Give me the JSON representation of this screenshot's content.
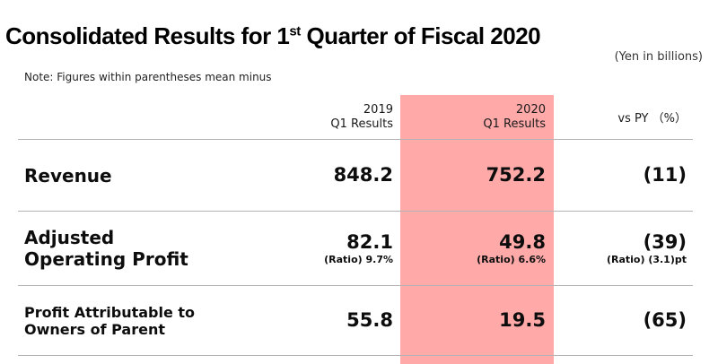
{
  "title": {
    "part1": "Consolidated Results for 1",
    "superscript": "st",
    "part2": " Quarter of Fiscal 2020"
  },
  "unit_note": "(Yen in billions)",
  "footnote": "Note: Figures within parentheses mean minus",
  "colors": {
    "highlight_band": "#ffa9a9",
    "rule_line": "#b3b3b3",
    "text": "#111111"
  },
  "chart_data": {
    "type": "table",
    "title": "Consolidated Results for 1st Quarter of Fiscal 2020",
    "unit": "Yen in billions",
    "columns": [
      "2019 Q1 Results",
      "2020 Q1 Results",
      "vs PY (%)"
    ],
    "rows": [
      {
        "label": "Revenue",
        "q1_2019": 848.2,
        "q1_2020": 752.2,
        "vs_py_pct": -11
      },
      {
        "label": "Adjusted Operating Profit",
        "q1_2019": 82.1,
        "ratio_2019": "9.7%",
        "q1_2020": 49.8,
        "ratio_2020": "6.6%",
        "vs_py_pct": -39,
        "ratio_change_pt": -3.1
      },
      {
        "label": "Profit Attributable to Owners of Parent",
        "q1_2019": 55.8,
        "q1_2020": 19.5,
        "vs_py_pct": -65
      }
    ]
  },
  "table": {
    "headers": {
      "col2019_line1": "2019",
      "col2019_line2": "Q1 Results",
      "col2020_line1": "2020",
      "col2020_line2": "Q1 Results",
      "vspy": "vs PY （%）"
    },
    "rows": [
      {
        "label_line1": "Revenue",
        "label_line2": "",
        "y2019": "848.2",
        "y2019_sub": "",
        "y2020": "752.2",
        "y2020_sub": "",
        "vspy": "(11)",
        "vspy_sub": ""
      },
      {
        "label_line1": "Adjusted",
        "label_line2": "Operating Profit",
        "y2019": "82.1",
        "y2019_sub": "(Ratio) 9.7%",
        "y2020": "49.8",
        "y2020_sub": "(Ratio) 6.6%",
        "vspy": "(39)",
        "vspy_sub": "(Ratio) (3.1)pt"
      },
      {
        "label_line1": "Profit Attributable to",
        "label_line2": "Owners of Parent",
        "y2019": "55.8",
        "y2019_sub": "",
        "y2020": "19.5",
        "y2020_sub": "",
        "vspy": "(65)",
        "vspy_sub": ""
      }
    ]
  }
}
